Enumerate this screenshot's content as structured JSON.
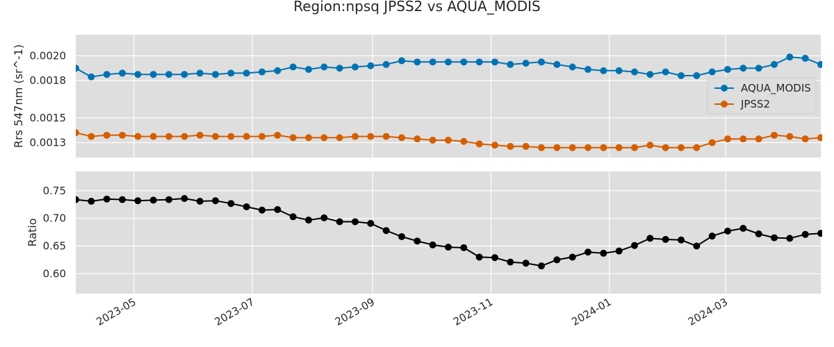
{
  "chart_data": {
    "type": "line",
    "title": "Region:npsq JPSS2 vs AQUA_MODIS",
    "x": [
      "2023-04-01",
      "2023-04-09",
      "2023-04-17",
      "2023-04-25",
      "2023-05-03",
      "2023-05-11",
      "2023-05-19",
      "2023-05-27",
      "2023-06-04",
      "2023-06-12",
      "2023-06-20",
      "2023-06-28",
      "2023-07-06",
      "2023-07-14",
      "2023-07-22",
      "2023-07-30",
      "2023-08-07",
      "2023-08-15",
      "2023-08-23",
      "2023-08-31",
      "2023-09-08",
      "2023-09-16",
      "2023-09-24",
      "2023-10-02",
      "2023-10-10",
      "2023-10-18",
      "2023-10-26",
      "2023-11-03",
      "2023-11-11",
      "2023-11-19",
      "2023-11-27",
      "2023-12-05",
      "2023-12-13",
      "2023-12-21",
      "2023-12-29",
      "2024-01-06",
      "2024-01-14",
      "2024-01-22",
      "2024-01-30",
      "2024-02-07",
      "2024-02-15",
      "2024-02-23",
      "2024-03-02",
      "2024-03-10",
      "2024-03-18",
      "2024-03-26",
      "2024-04-03",
      "2024-04-11",
      "2024-04-19"
    ],
    "xticks": [
      "2023-05",
      "2023-07",
      "2023-09",
      "2023-11",
      "2024-01",
      "2024-03"
    ],
    "xlim": [
      "2023-04-01",
      "2024-04-19"
    ],
    "panels": [
      {
        "ylabel": "Rrs 547nm (sr^-1)",
        "ylim": [
          0.00118,
          0.00217
        ],
        "yticks": [
          0.0013,
          0.0015,
          0.0018,
          0.002
        ],
        "ytick_labels": [
          "0.0013",
          "0.0015",
          "0.0018",
          "0.0020"
        ],
        "legend": "right",
        "series": [
          {
            "name": "AQUA_MODIS",
            "color": "#0072b2",
            "values": [
              0.0019,
              0.00183,
              0.00185,
              0.00186,
              0.00185,
              0.00185,
              0.00185,
              0.00185,
              0.00186,
              0.00185,
              0.00186,
              0.00186,
              0.00187,
              0.00188,
              0.00191,
              0.00189,
              0.00191,
              0.0019,
              0.00191,
              0.00192,
              0.00193,
              0.00196,
              0.00195,
              0.00195,
              0.00195,
              0.00195,
              0.00195,
              0.00195,
              0.00193,
              0.00194,
              0.00195,
              0.00193,
              0.00191,
              0.00189,
              0.00188,
              0.00188,
              0.00187,
              0.00185,
              0.00187,
              0.00184,
              0.00184,
              0.00187,
              0.00189,
              0.0019,
              0.0019,
              0.00193,
              0.00199,
              0.00198,
              0.00193
            ]
          },
          {
            "name": "JPSS2",
            "color": "#d55e00",
            "values": [
              0.00138,
              0.00135,
              0.00136,
              0.00136,
              0.00135,
              0.00135,
              0.00135,
              0.00135,
              0.00136,
              0.00135,
              0.00135,
              0.00135,
              0.00135,
              0.00136,
              0.00134,
              0.00134,
              0.00134,
              0.00134,
              0.00135,
              0.00135,
              0.00135,
              0.00134,
              0.00133,
              0.00132,
              0.00132,
              0.00131,
              0.00129,
              0.00128,
              0.00127,
              0.00127,
              0.00126,
              0.00126,
              0.00126,
              0.00126,
              0.00126,
              0.00126,
              0.00126,
              0.00128,
              0.00126,
              0.00126,
              0.00126,
              0.0013,
              0.00133,
              0.00133,
              0.00133,
              0.00136,
              0.00135,
              0.00133,
              0.00134
            ]
          }
        ]
      },
      {
        "ylabel": "Ratio",
        "ylim": [
          0.564,
          0.785
        ],
        "yticks": [
          0.6,
          0.65,
          0.7,
          0.75
        ],
        "ytick_labels": [
          "0.60",
          "0.65",
          "0.70",
          "0.75"
        ],
        "series": [
          {
            "color": "#000000",
            "values": [
              0.734,
              0.731,
              0.735,
              0.734,
              0.732,
              0.733,
              0.734,
              0.736,
              0.731,
              0.732,
              0.727,
              0.721,
              0.715,
              0.716,
              0.703,
              0.697,
              0.701,
              0.694,
              0.694,
              0.691,
              0.678,
              0.667,
              0.659,
              0.652,
              0.648,
              0.647,
              0.63,
              0.629,
              0.621,
              0.619,
              0.614,
              0.625,
              0.63,
              0.639,
              0.637,
              0.641,
              0.651,
              0.664,
              0.662,
              0.661,
              0.65,
              0.668,
              0.677,
              0.682,
              0.672,
              0.665,
              0.664,
              0.671,
              0.673
            ]
          }
        ]
      }
    ]
  }
}
